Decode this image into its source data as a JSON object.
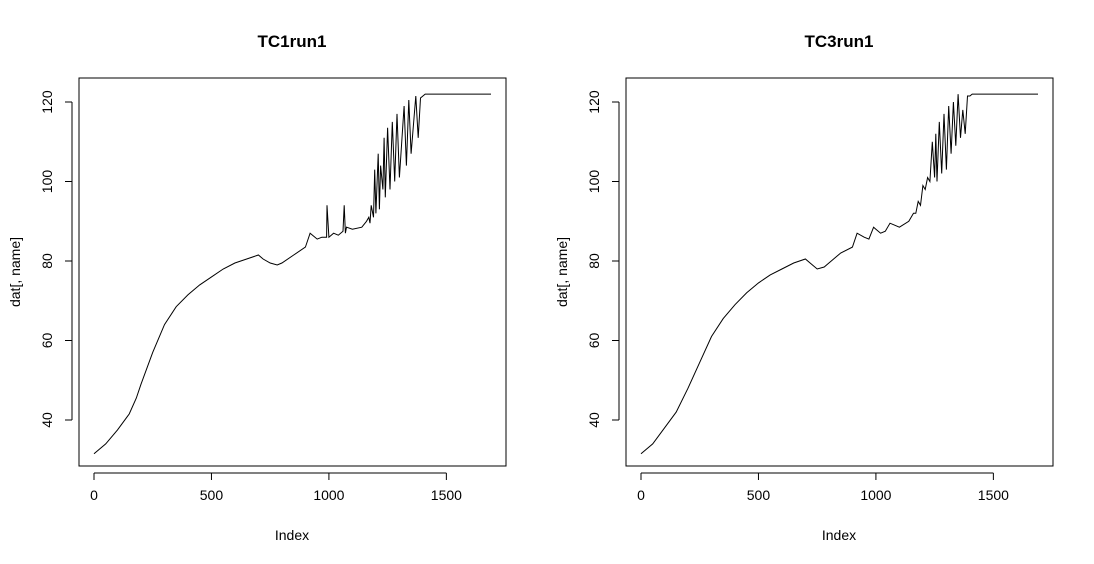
{
  "chart_data": [
    {
      "type": "line",
      "title": "TC1run1",
      "xlabel": "Index",
      "ylabel": "dat[, name]",
      "xlim": [
        0,
        1690
      ],
      "ylim": [
        30,
        124
      ],
      "xticks": [
        "0",
        "500",
        "1000",
        "1500"
      ],
      "yticks": [
        "40",
        "60",
        "80",
        "100",
        "120"
      ],
      "grid": false,
      "series": [
        {
          "color": "#000000",
          "x": [
            0,
            50,
            100,
            150,
            180,
            200,
            250,
            300,
            350,
            400,
            450,
            500,
            550,
            600,
            650,
            700,
            720,
            750,
            780,
            800,
            850,
            900,
            920,
            950,
            970,
            990,
            992,
            1000,
            1020,
            1040,
            1060,
            1065,
            1070,
            1075,
            1100,
            1140,
            1160,
            1170,
            1175,
            1180,
            1190,
            1195,
            1200,
            1210,
            1215,
            1220,
            1230,
            1235,
            1240,
            1250,
            1260,
            1270,
            1280,
            1290,
            1300,
            1320,
            1330,
            1340,
            1350,
            1370,
            1380,
            1390,
            1400,
            1410,
            1420,
            1430,
            1450,
            1500,
            1550,
            1600,
            1690
          ],
          "y": [
            31.5,
            34,
            37.5,
            41.5,
            45.5,
            49,
            57,
            64,
            68.5,
            71.5,
            74,
            76,
            78,
            79.5,
            80.5,
            81.5,
            80.5,
            79.5,
            79,
            79.5,
            81.5,
            83.5,
            87,
            85.5,
            86,
            86,
            94,
            86,
            87,
            86.5,
            87.5,
            94,
            87,
            88.5,
            88,
            88.5,
            90,
            91,
            89.5,
            94,
            91,
            103,
            92,
            107,
            93,
            104,
            98,
            111,
            96,
            113.5,
            98,
            115,
            100,
            117,
            101,
            119,
            104,
            120.5,
            107,
            121.5,
            111,
            121,
            121.5,
            122,
            122,
            122,
            122,
            122,
            122,
            122,
            122
          ]
        }
      ]
    },
    {
      "type": "line",
      "title": "TC3run1",
      "xlabel": "Index",
      "ylabel": "dat[, name]",
      "xlim": [
        0,
        1690
      ],
      "ylim": [
        30,
        124
      ],
      "xticks": [
        "0",
        "500",
        "1000",
        "1500"
      ],
      "yticks": [
        "40",
        "60",
        "80",
        "100",
        "120"
      ],
      "grid": false,
      "series": [
        {
          "color": "#000000",
          "x": [
            0,
            50,
            100,
            150,
            200,
            250,
            300,
            350,
            400,
            450,
            500,
            550,
            600,
            650,
            700,
            720,
            750,
            780,
            800,
            850,
            900,
            920,
            950,
            970,
            990,
            1000,
            1020,
            1040,
            1060,
            1080,
            1100,
            1140,
            1160,
            1170,
            1180,
            1190,
            1200,
            1210,
            1220,
            1230,
            1240,
            1250,
            1255,
            1260,
            1270,
            1280,
            1290,
            1300,
            1310,
            1320,
            1330,
            1340,
            1350,
            1360,
            1370,
            1380,
            1390,
            1400,
            1410,
            1420,
            1450,
            1500,
            1550,
            1600,
            1690
          ],
          "y": [
            31.5,
            34,
            38,
            42,
            48,
            54.5,
            61,
            65.5,
            69,
            72,
            74.5,
            76.5,
            78,
            79.5,
            80.5,
            79.5,
            78,
            78.5,
            79.5,
            82,
            83.5,
            87,
            86,
            85.5,
            88.5,
            88,
            87,
            87.5,
            89.5,
            89,
            88.5,
            90,
            92,
            92,
            95,
            94,
            99,
            98,
            101,
            100,
            110,
            101,
            112,
            100,
            115,
            102,
            117,
            103,
            119,
            107,
            120,
            109,
            122,
            111,
            118,
            112,
            121.5,
            121.5,
            122,
            122,
            122,
            122,
            122,
            122,
            122
          ]
        }
      ]
    }
  ]
}
